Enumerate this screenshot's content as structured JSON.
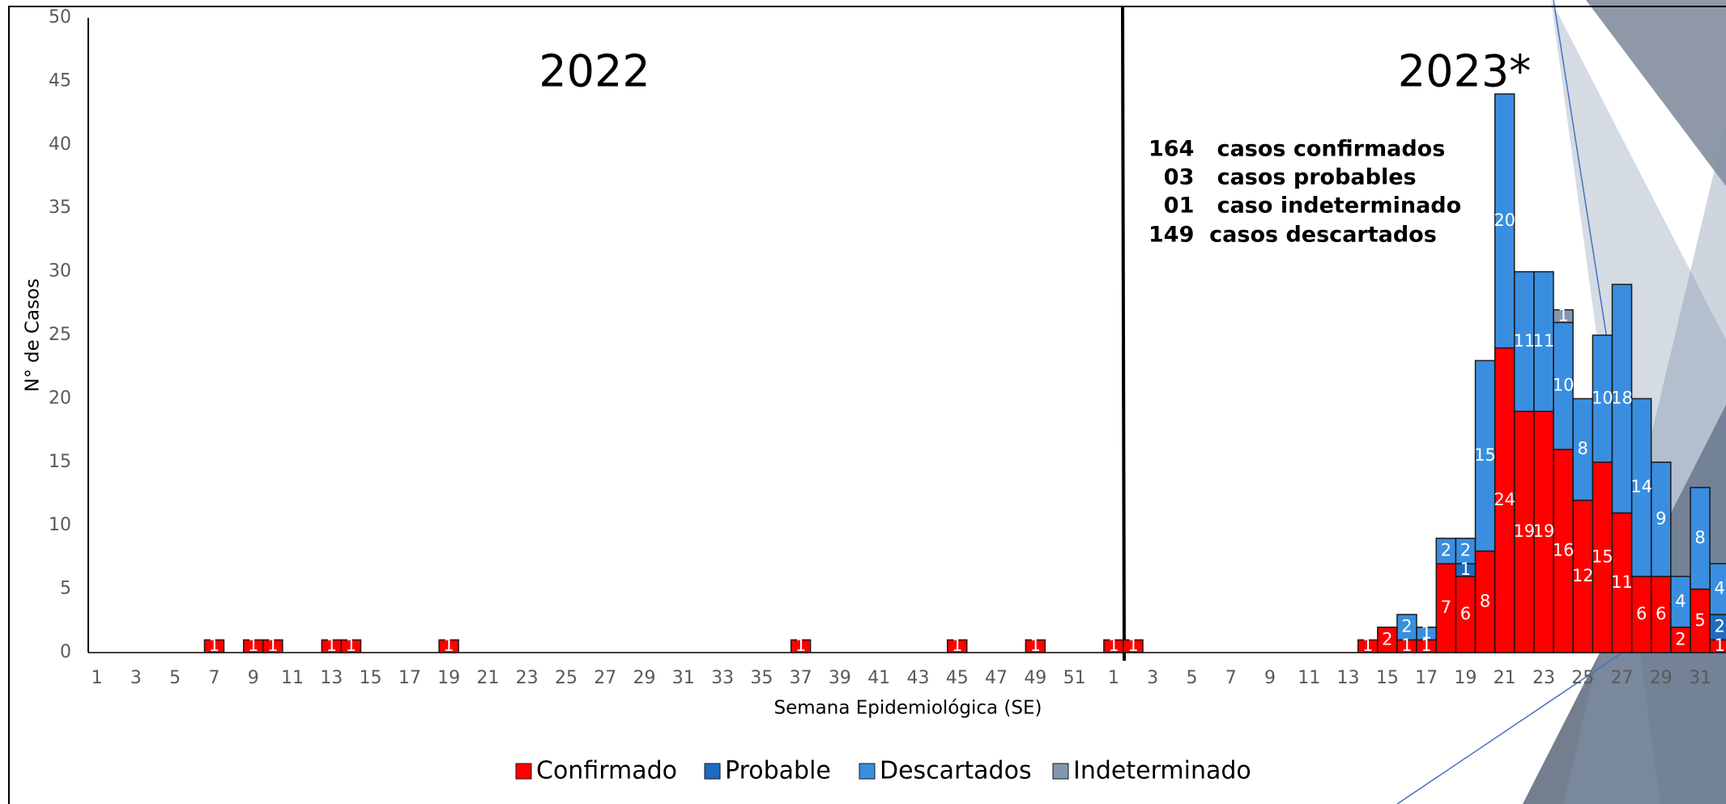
{
  "chart_data": {
    "type": "bar",
    "stacked": true,
    "y_label": "N° de Casos",
    "x_label": "Semana Epidemiológica (SE)",
    "year_labels": [
      "2022",
      "2023*"
    ],
    "annotations": [
      "164   casos confirmados",
      "  03   casos probables",
      "  01   caso indeterminado",
      "149  casos descartados"
    ],
    "categories": [
      1,
      null,
      3,
      null,
      5,
      null,
      7,
      null,
      9,
      null,
      11,
      null,
      13,
      null,
      15,
      null,
      17,
      null,
      19,
      null,
      21,
      null,
      23,
      null,
      25,
      null,
      27,
      null,
      29,
      null,
      31,
      null,
      33,
      null,
      35,
      null,
      37,
      null,
      39,
      null,
      41,
      null,
      43,
      null,
      45,
      null,
      47,
      null,
      49,
      null,
      51,
      null,
      1,
      null,
      3,
      null,
      5,
      null,
      7,
      null,
      9,
      null,
      11,
      null,
      13,
      null,
      15,
      null,
      17,
      null,
      19,
      null,
      21,
      null,
      23,
      null,
      25,
      null,
      27,
      null,
      29,
      null,
      31,
      null
    ],
    "series": [
      {
        "name": "Confirmado",
        "color": "#ff0000",
        "values": [
          0,
          0,
          0,
          0,
          0,
          0,
          1,
          0,
          1,
          1,
          0,
          0,
          1,
          1,
          0,
          0,
          0,
          0,
          1,
          0,
          0,
          0,
          0,
          0,
          0,
          0,
          0,
          0,
          0,
          0,
          0,
          0,
          0,
          0,
          0,
          0,
          1,
          0,
          0,
          0,
          0,
          0,
          0,
          0,
          1,
          0,
          0,
          0,
          1,
          0,
          0,
          0,
          1,
          1,
          0,
          0,
          0,
          0,
          0,
          0,
          0,
          0,
          0,
          0,
          0,
          1,
          2,
          1,
          1,
          7,
          6,
          8,
          24,
          19,
          19,
          16,
          12,
          15,
          11,
          6,
          6,
          2,
          5,
          1
        ]
      },
      {
        "name": "Probable",
        "color": "#1f6bbf",
        "values": [
          0,
          0,
          0,
          0,
          0,
          0,
          0,
          0,
          0,
          0,
          0,
          0,
          0,
          0,
          0,
          0,
          0,
          0,
          0,
          0,
          0,
          0,
          0,
          0,
          0,
          0,
          0,
          0,
          0,
          0,
          0,
          0,
          0,
          0,
          0,
          0,
          0,
          0,
          0,
          0,
          0,
          0,
          0,
          0,
          0,
          0,
          0,
          0,
          0,
          0,
          0,
          0,
          0,
          0,
          0,
          0,
          0,
          0,
          0,
          0,
          0,
          0,
          0,
          0,
          0,
          0,
          0,
          0,
          0,
          0,
          1,
          0,
          0,
          0,
          0,
          0,
          0,
          0,
          0,
          0,
          0,
          0,
          0,
          2
        ]
      },
      {
        "name": "Descartados",
        "color": "#3a8ee0",
        "values": [
          0,
          0,
          0,
          0,
          0,
          0,
          0,
          0,
          0,
          0,
          0,
          0,
          0,
          0,
          0,
          0,
          0,
          0,
          0,
          0,
          0,
          0,
          0,
          0,
          0,
          0,
          0,
          0,
          0,
          0,
          0,
          0,
          0,
          0,
          0,
          0,
          0,
          0,
          0,
          0,
          0,
          0,
          0,
          0,
          0,
          0,
          0,
          0,
          0,
          0,
          0,
          0,
          0,
          0,
          0,
          0,
          0,
          0,
          0,
          0,
          0,
          0,
          0,
          0,
          0,
          0,
          0,
          2,
          1,
          2,
          2,
          15,
          20,
          11,
          11,
          10,
          8,
          10,
          18,
          14,
          9,
          4,
          8,
          4
        ]
      },
      {
        "name": "Indeterminado",
        "color": "#8497b0",
        "values": [
          0,
          0,
          0,
          0,
          0,
          0,
          0,
          0,
          0,
          0,
          0,
          0,
          0,
          0,
          0,
          0,
          0,
          0,
          0,
          0,
          0,
          0,
          0,
          0,
          0,
          0,
          0,
          0,
          0,
          0,
          0,
          0,
          0,
          0,
          0,
          0,
          0,
          0,
          0,
          0,
          0,
          0,
          0,
          0,
          0,
          0,
          0,
          0,
          0,
          0,
          0,
          0,
          0,
          0,
          0,
          0,
          0,
          0,
          0,
          0,
          0,
          0,
          0,
          0,
          0,
          0,
          0,
          0,
          0,
          0,
          0,
          0,
          0,
          0,
          0,
          1,
          0,
          0,
          0,
          0,
          0,
          0,
          0,
          0
        ]
      }
    ],
    "ylim": [
      0,
      50
    ],
    "yticks": [
      0,
      5,
      10,
      15,
      20,
      25,
      30,
      35,
      40,
      45,
      50
    ],
    "grid": false,
    "legend": "bottom"
  }
}
